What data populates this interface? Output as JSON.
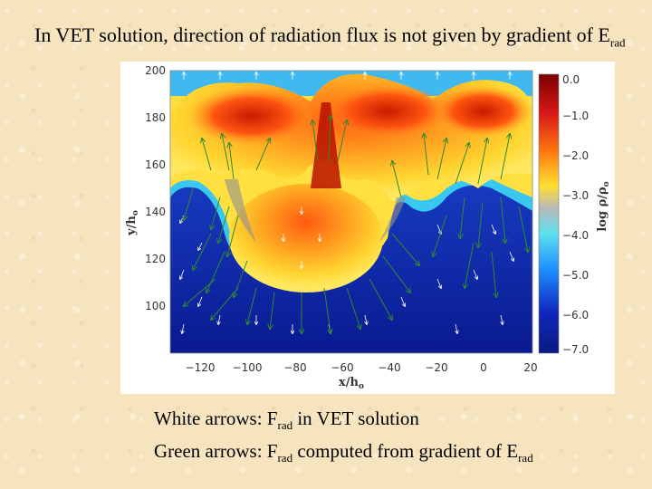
{
  "title": {
    "main": "In VET solution, direction of radiation flux is not given by gradient of E",
    "sub": "rad"
  },
  "figure": {
    "xlabel": "x/h",
    "xlabel_sub": "o",
    "ylabel": "y/h",
    "ylabel_sub": "o",
    "colorbar_label": "log ρ/ρ",
    "colorbar_label_sub": "o",
    "xticks": [
      "−120",
      "−100",
      "−80",
      "−60",
      "−40",
      "−20",
      "0",
      "20"
    ],
    "yticks": [
      "200",
      "180",
      "160",
      "140",
      "120",
      "100"
    ],
    "colorbar_ticks": [
      "0.0",
      "−1.0",
      "−2.0",
      "−3.0",
      "−4.0",
      "−5.0",
      "−6.0",
      "−7.0"
    ],
    "colors": {
      "high": "#cc2200",
      "mid": "#ffd020",
      "low": "#2040d0",
      "white_arrow": "#ffffff",
      "green_arrow": "#2f8a2f"
    }
  },
  "caption": {
    "line1_pre": "White arrows: F",
    "line1_sub": "rad",
    "line1_post": " in VET solution",
    "line2_pre": "Green arrows: F",
    "line2_sub": "rad",
    "line2_post": " computed from gradient of E",
    "line2_sub2": "rad"
  }
}
